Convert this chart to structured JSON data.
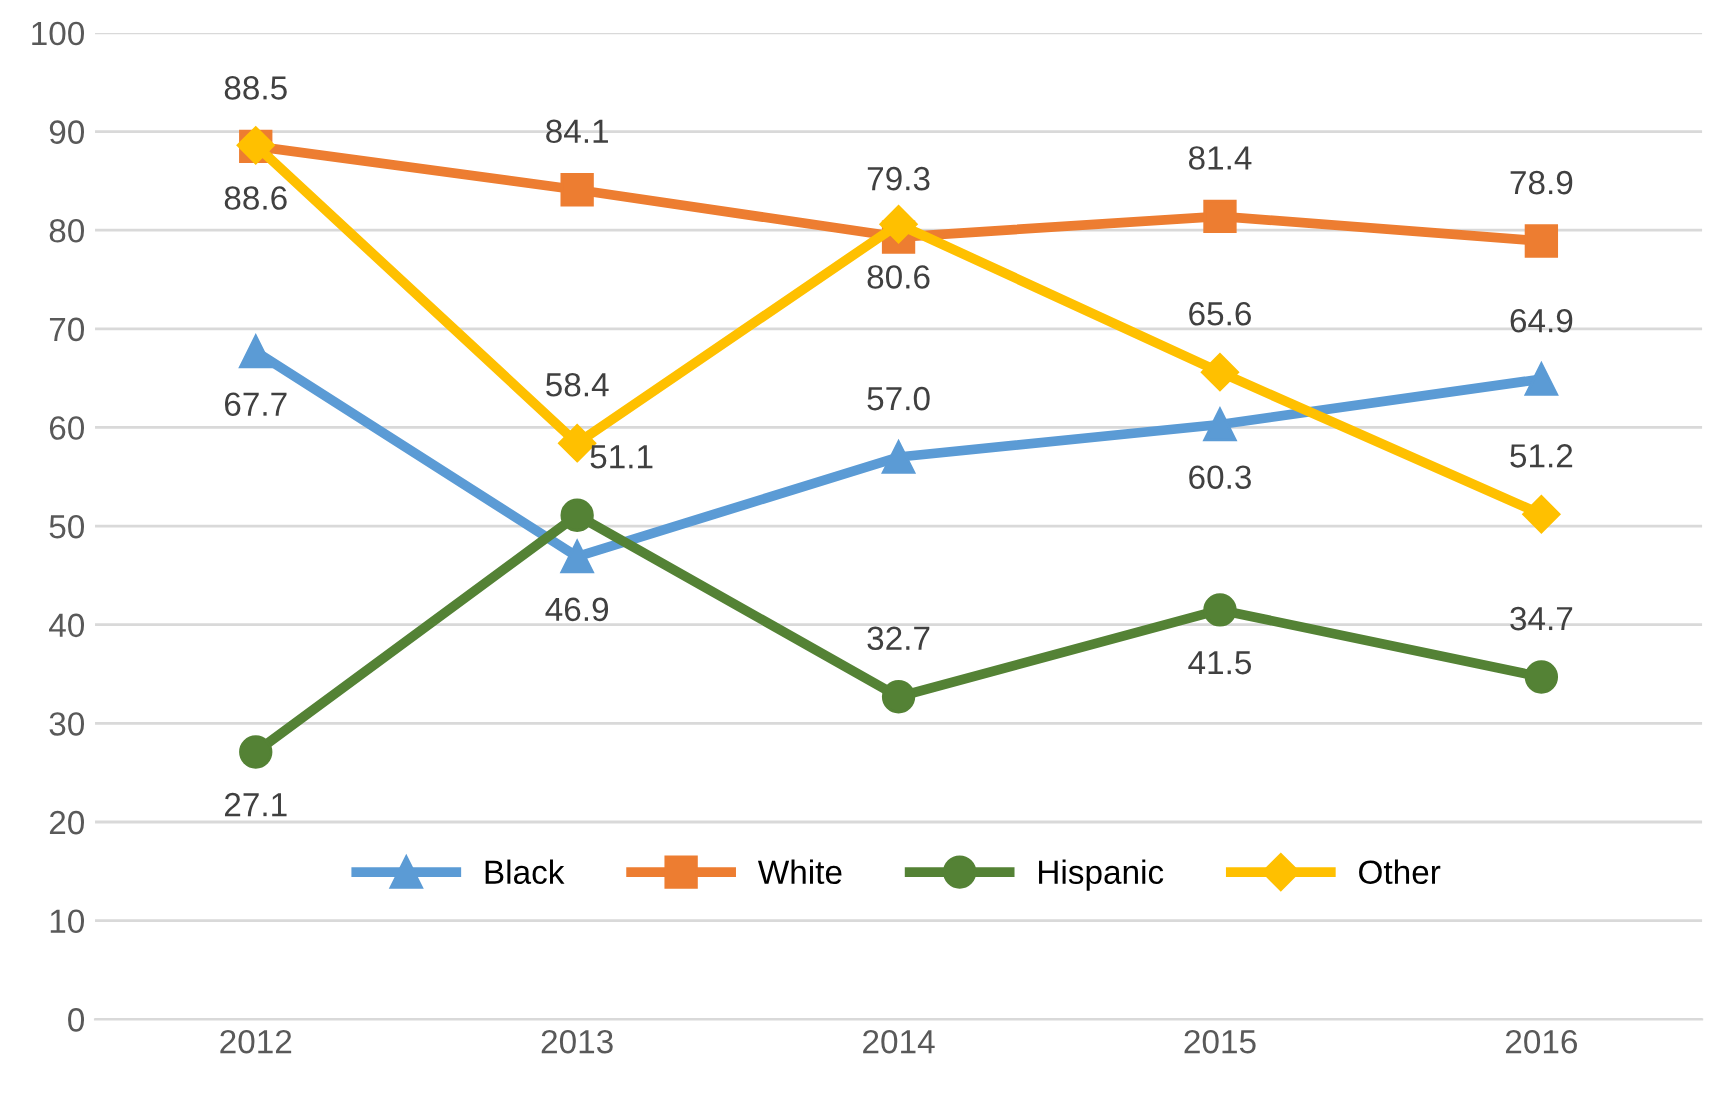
{
  "chart_data": {
    "type": "line",
    "categories": [
      "2012",
      "2013",
      "2014",
      "2015",
      "2016"
    ],
    "series": [
      {
        "name": "Black",
        "color": "#5b9bd5",
        "marker": "triangle",
        "values": [
          67.7,
          46.9,
          57.0,
          60.3,
          64.9
        ],
        "value_labels": [
          "67.7",
          "46.9",
          "57.0",
          "60.3",
          "64.9"
        ]
      },
      {
        "name": "White",
        "color": "#ed7d31",
        "marker": "square",
        "values": [
          88.5,
          84.1,
          79.3,
          81.4,
          78.9
        ],
        "value_labels": [
          "88.5",
          "84.1",
          "79.3",
          "81.4",
          "78.9"
        ]
      },
      {
        "name": "Hispanic",
        "color": "#548235",
        "marker": "circle",
        "values": [
          27.1,
          51.1,
          32.7,
          41.5,
          34.7
        ],
        "value_labels": [
          "27.1",
          "51.1",
          "32.7",
          "41.5",
          "34.7"
        ]
      },
      {
        "name": "Other",
        "color": "#ffc000",
        "marker": "diamond",
        "values": [
          88.6,
          58.4,
          80.6,
          65.6,
          51.2
        ],
        "value_labels": [
          "88.6",
          "58.4",
          "80.6",
          "65.6",
          "51.2"
        ]
      }
    ],
    "ylim": [
      0,
      100
    ],
    "yticks": [
      0,
      10,
      20,
      30,
      40,
      50,
      60,
      70,
      80,
      90,
      100
    ],
    "grid": "y",
    "legend": "bottom",
    "line_style": "solid"
  }
}
